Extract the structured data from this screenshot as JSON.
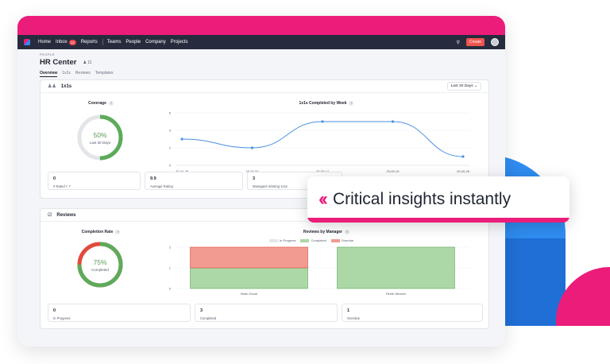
{
  "nav": {
    "items": [
      "Home",
      "Inbox",
      "Reports",
      "Teams",
      "People",
      "Company",
      "Projects"
    ],
    "inbox_badge": "12",
    "create_label": "Create"
  },
  "header": {
    "breadcrumb": "PEOPLE",
    "title": "HR Center",
    "people_count": "11",
    "tabs": [
      "Overview",
      "1x1s",
      "Reviews",
      "Templates"
    ]
  },
  "one_on_ones": {
    "title": "1x1s",
    "range": "Last 30 Days",
    "coverage": {
      "title": "Coverage",
      "value": "50%",
      "sub": "Last 30 Days",
      "fraction": 0.5
    },
    "stats": [
      {
        "value": "0",
        "label": "# Rated < 7"
      },
      {
        "value": "9.9",
        "label": "Average Rating"
      },
      {
        "value": "3",
        "label": "Managers missing 1x1s"
      }
    ]
  },
  "reviews": {
    "title": "Reviews",
    "completion": {
      "title": "Completion Rate",
      "value": "75%",
      "sub": "Completed",
      "fraction": 0.75
    },
    "stats": [
      {
        "value": "0",
        "label": "In Progress"
      },
      {
        "value": "3",
        "label": "Completed"
      },
      {
        "value": "1",
        "label": "Overdue"
      }
    ]
  },
  "callout": {
    "text": "Critical insights instantly"
  },
  "colors": {
    "brand_pink": "#ec1c7a",
    "green": "#5cab5a",
    "red": "#e24a3b",
    "blue_line": "#4a90e2"
  },
  "chart_data": [
    {
      "type": "line",
      "title": "1x1s Completed by Week",
      "x": [
        "25-04-28",
        "25-05-05",
        "25-05-12",
        "25-05-19",
        "25-05-26"
      ],
      "y_ticks": [
        0,
        2,
        4,
        6
      ],
      "ylim": [
        0,
        6
      ],
      "values": [
        3,
        2,
        5,
        5,
        1
      ]
    },
    {
      "type": "bar",
      "title": "Reviews by Manager",
      "categories": [
        "Brian Doval",
        "Derek Weaver"
      ],
      "y_ticks": [
        0,
        1,
        2
      ],
      "ylim": [
        0,
        2
      ],
      "legend": "top",
      "series": [
        {
          "name": "In Progress",
          "values": [
            0,
            0
          ],
          "color": "#e6e7ea"
        },
        {
          "name": "Completed",
          "values": [
            1,
            2
          ],
          "color": "#acd7a6"
        },
        {
          "name": "Overdue",
          "values": [
            1,
            0
          ],
          "color": "#f19b91"
        }
      ]
    }
  ]
}
